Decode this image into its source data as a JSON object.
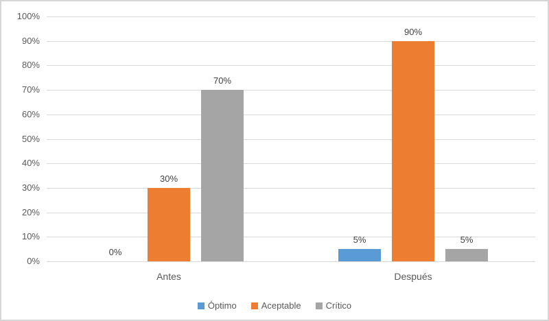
{
  "chart_data": {
    "type": "bar",
    "title": "",
    "categories": [
      "Antes",
      "Después"
    ],
    "series": [
      {
        "name": "Óptimo",
        "color": "#5B9BD5",
        "values": [
          0,
          5
        ]
      },
      {
        "name": "Aceptable",
        "color": "#ED7D31",
        "values": [
          30,
          90
        ]
      },
      {
        "name": "Crítico",
        "color": "#A5A5A5",
        "values": [
          70,
          5
        ]
      }
    ],
    "data_labels": [
      [
        "0%",
        "30%",
        "70%"
      ],
      [
        "5%",
        "90%",
        "5%"
      ]
    ],
    "y_axis": {
      "min": 0,
      "max": 100,
      "step": 10,
      "ticks": [
        "0%",
        "10%",
        "20%",
        "30%",
        "40%",
        "50%",
        "60%",
        "70%",
        "80%",
        "90%",
        "100%"
      ]
    },
    "x_axis": {
      "labels": [
        "Antes",
        "Después"
      ]
    },
    "legend": {
      "position": "bottom",
      "entries": [
        "Óptimo",
        "Aceptable",
        "Crítico"
      ]
    },
    "grid": true,
    "colors": {
      "gridline": "#d9d9d9",
      "axis_text": "#595959",
      "data_label_text": "#404040",
      "background": "#ffffff",
      "border": "#d6d6d6"
    }
  }
}
